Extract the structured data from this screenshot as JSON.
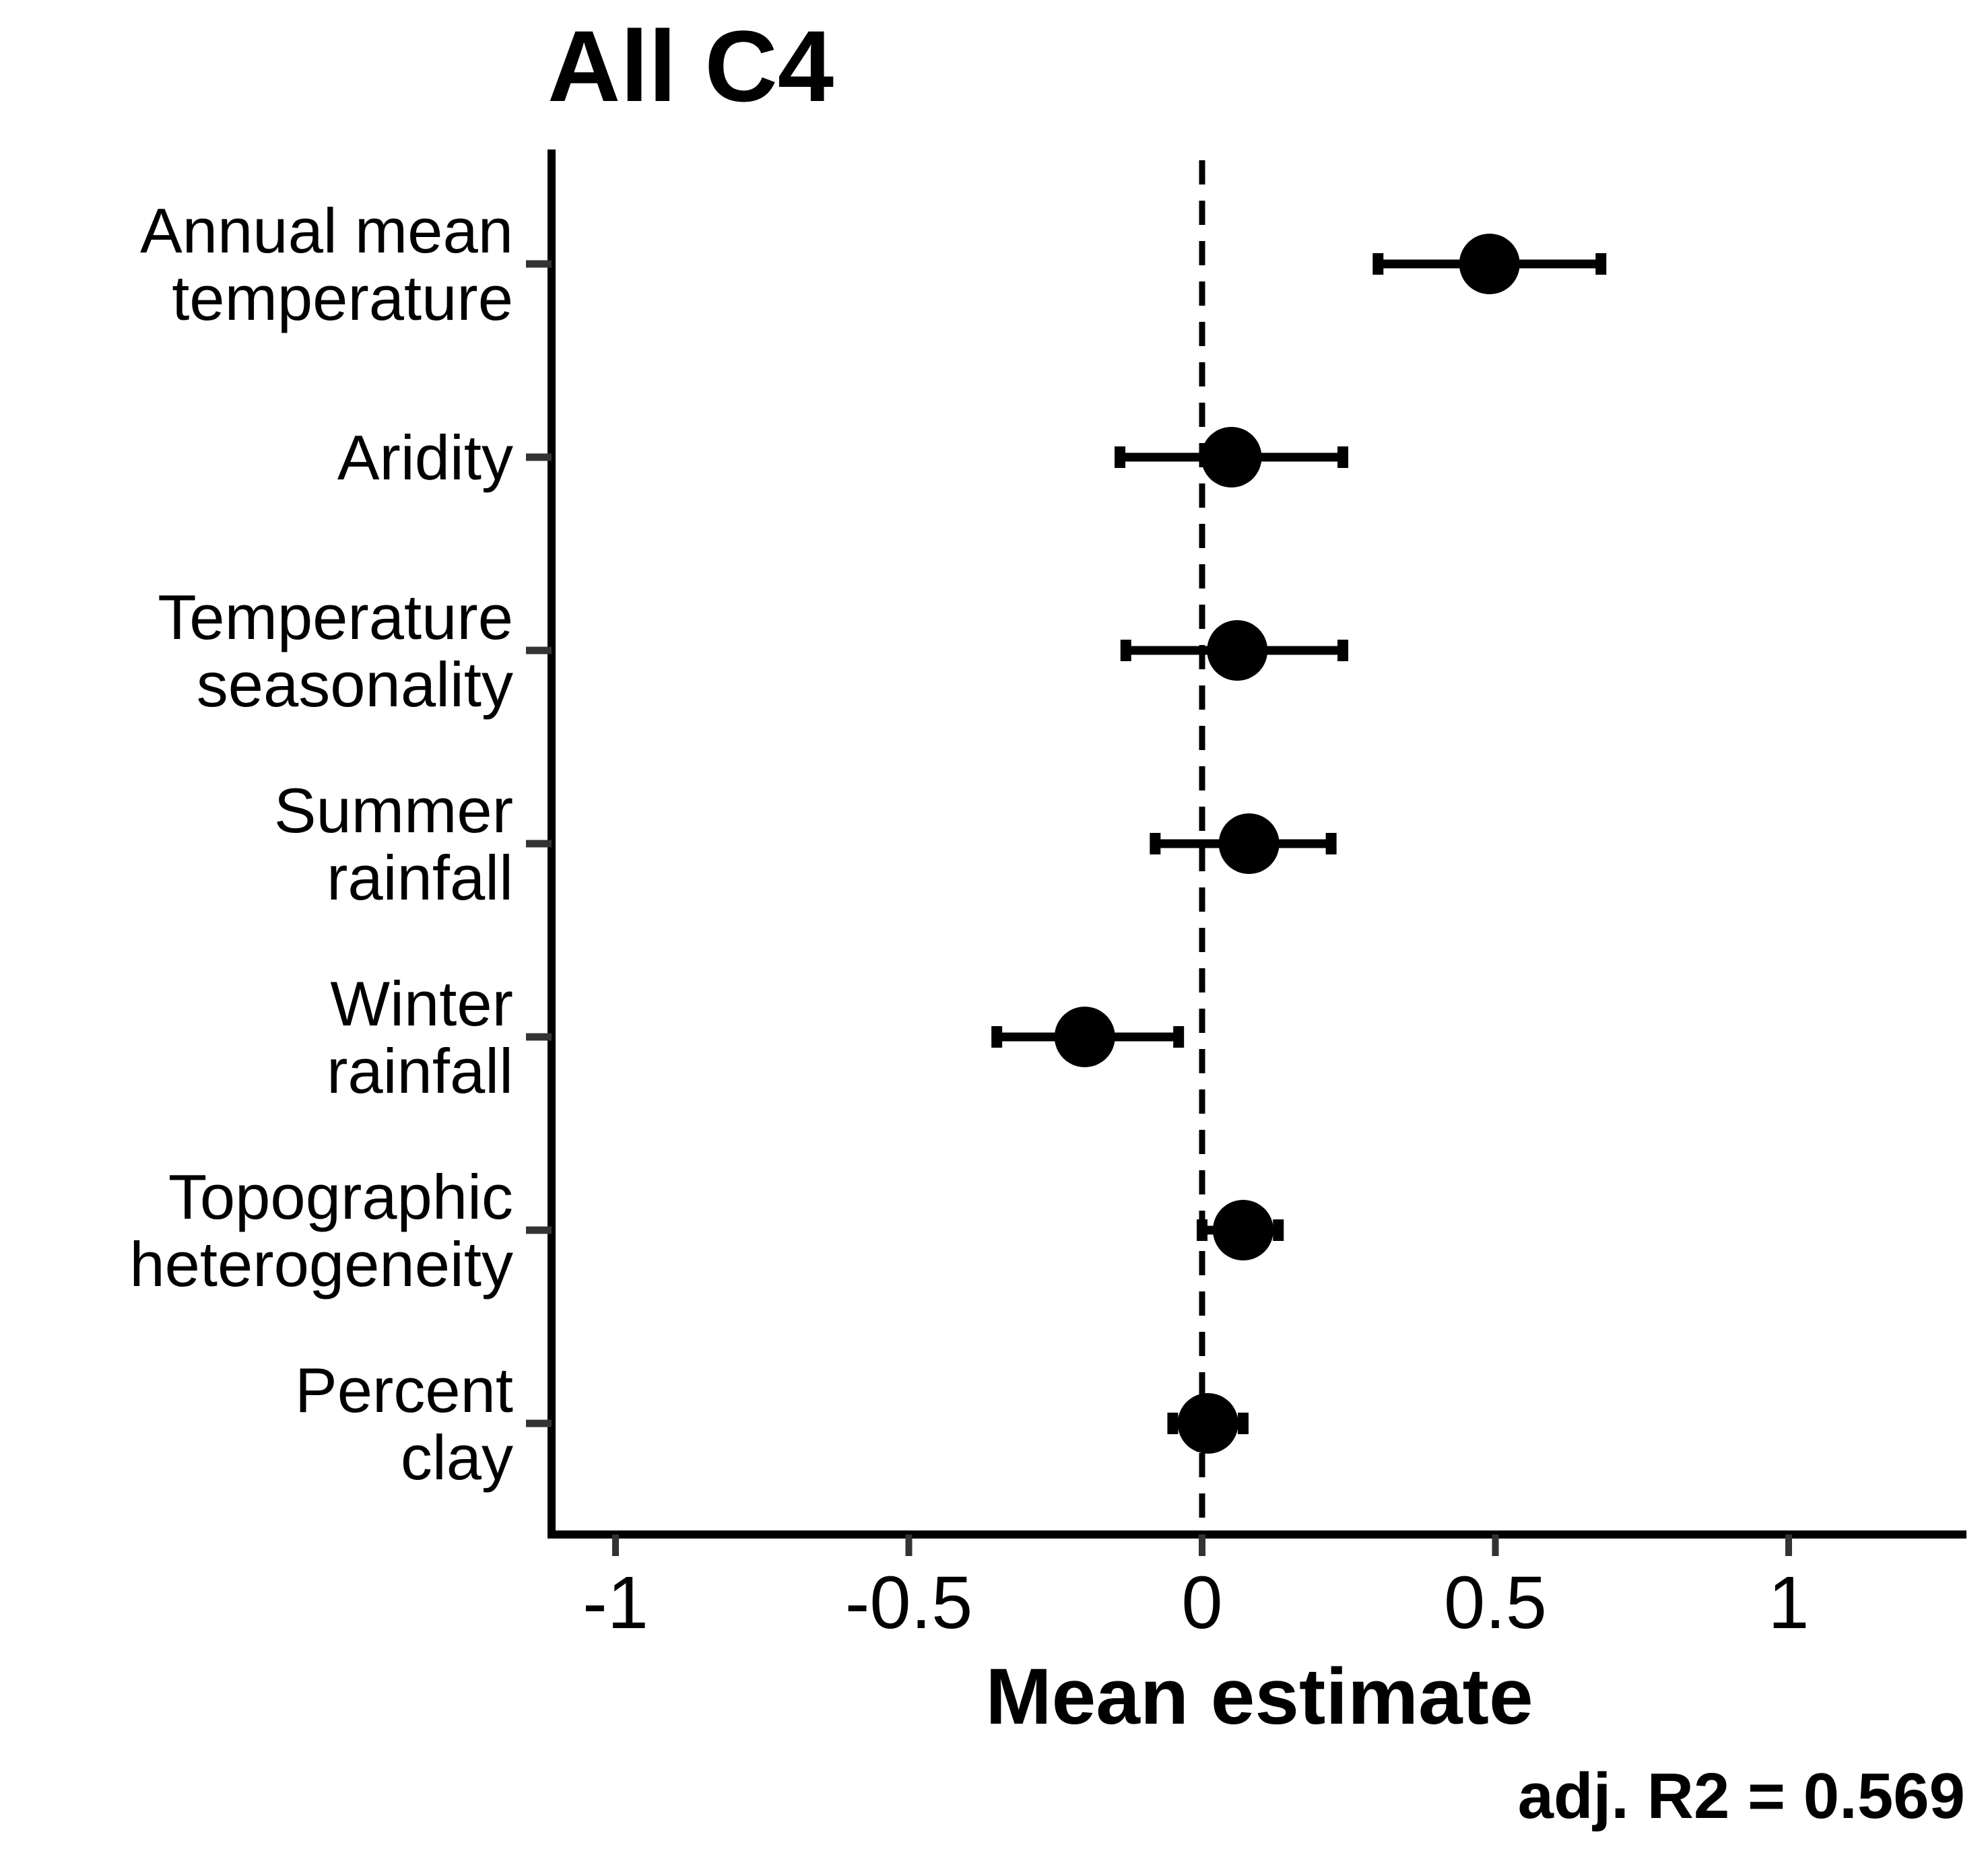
{
  "chart_data": {
    "type": "scatter",
    "subtype": "coefficient-plot",
    "title": "All C4",
    "xlabel": "Mean estimate",
    "ylabel": "",
    "xlim": [
      -1.11,
      1.31
    ],
    "xticks": [
      -1,
      -0.5,
      0,
      0.5,
      1
    ],
    "xtick_labels": [
      "-1",
      "-0.5",
      "0",
      "0.5",
      "1"
    ],
    "reference_line": {
      "x": 0,
      "style": "dashed"
    },
    "annotation": "adj. R2 = 0.569",
    "grid": false,
    "legend": "none",
    "colors": {
      "points": "#000000",
      "axis": "#000000",
      "tick": "#333333"
    },
    "categories": [
      [
        "Annual mean",
        "temperature"
      ],
      [
        "Aridity"
      ],
      [
        "Temperature",
        "seasonality"
      ],
      [
        "Summer",
        "rainfall"
      ],
      [
        "Winter",
        "rainfall"
      ],
      [
        "Topographic",
        "heterogeneity"
      ],
      [
        "Percent",
        "clay"
      ]
    ],
    "estimates": [
      0.49,
      0.05,
      0.06,
      0.08,
      -0.2,
      0.07,
      0.01
    ],
    "ci_low": [
      0.3,
      -0.14,
      -0.13,
      -0.08,
      -0.35,
      0.0,
      -0.05
    ],
    "ci_high": [
      0.68,
      0.24,
      0.24,
      0.22,
      -0.04,
      0.13,
      0.07
    ]
  }
}
